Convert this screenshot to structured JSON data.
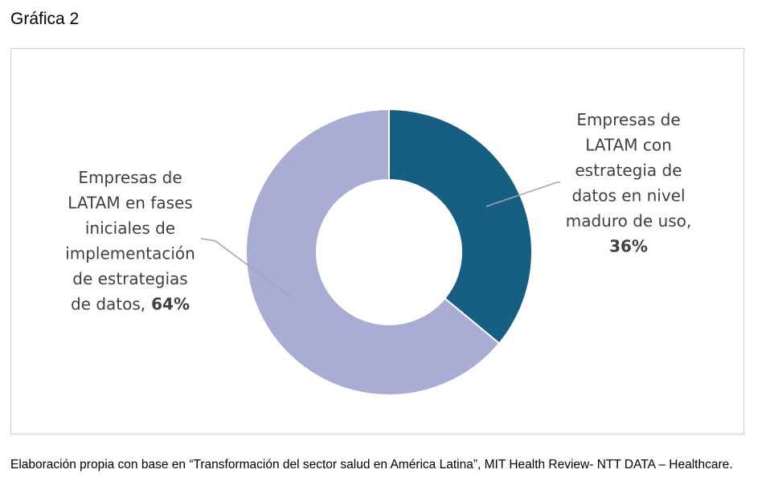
{
  "title": "Gráfica 2",
  "source": "Elaboración propia con base en “Transformación del sector salud en América Latina”, MIT Health Review- NTT DATA – Healthcare.",
  "chart_data": {
    "type": "pie",
    "donut": true,
    "slices": [
      {
        "label_lines": [
          "Empresas de",
          "LATAM con",
          "estrategia de",
          "datos en nivel",
          "maduro de uso,"
        ],
        "value_label": "36%",
        "value": 36,
        "color": "#175F82"
      },
      {
        "label_lines": [
          "Empresas de",
          "LATAM en fases",
          "iniciales de",
          "implementación",
          "de estrategias",
          "de datos,"
        ],
        "value_label": "64%",
        "value": 64,
        "color": "#A9ADD4"
      }
    ]
  }
}
